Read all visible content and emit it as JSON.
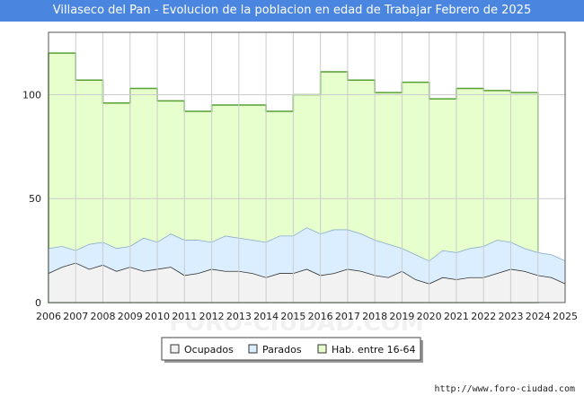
{
  "chart_data": {
    "type": "area",
    "title": "Villaseco del Pan - Evolucion de la poblacion en edad de Trabajar Febrero de 2025",
    "xlabel": "",
    "ylabel": "",
    "x_ticks": [
      "2006",
      "2007",
      "2008",
      "2009",
      "2010",
      "2011",
      "2012",
      "2013",
      "2014",
      "2015",
      "2016",
      "2017",
      "2018",
      "2019",
      "2020",
      "2021",
      "2022",
      "2023",
      "2024",
      "2025"
    ],
    "y_ticks": [
      0,
      50,
      100
    ],
    "xlim": [
      2006,
      2025
    ],
    "ylim": [
      0,
      130
    ],
    "grid": true,
    "legend_position": "bottom-center",
    "colors": {
      "ocupados": "#f2f2f2",
      "parados": "#dbeeff",
      "hab": "#e6ffcc",
      "hab_line": "#55a030",
      "grid": "#cccccc"
    },
    "series": [
      {
        "name": "Hab. entre 16-64",
        "x": [
          2006,
          2007,
          2008,
          2009,
          2010,
          2011,
          2012,
          2013,
          2014,
          2015,
          2016,
          2017,
          2018,
          2019,
          2020,
          2021,
          2022,
          2023
        ],
        "values": [
          120,
          107,
          96,
          103,
          97,
          92,
          95,
          95,
          92,
          100,
          111,
          107,
          101,
          106,
          98,
          103,
          102,
          101
        ]
      },
      {
        "name": "Parados",
        "x": [
          2006,
          2006.5,
          2007,
          2007.5,
          2008,
          2008.5,
          2009,
          2009.5,
          2010,
          2010.5,
          2011,
          2011.5,
          2012,
          2012.5,
          2013,
          2013.5,
          2014,
          2014.5,
          2015,
          2015.5,
          2016,
          2016.5,
          2017,
          2017.5,
          2018,
          2018.5,
          2019,
          2019.5,
          2020,
          2020.5,
          2021,
          2021.5,
          2022,
          2022.5,
          2023,
          2023.5,
          2024,
          2024.5,
          2025
        ],
        "values": [
          26,
          27,
          25,
          28,
          29,
          26,
          27,
          31,
          29,
          33,
          30,
          30,
          29,
          32,
          31,
          30,
          29,
          32,
          32,
          36,
          33,
          35,
          35,
          33,
          30,
          28,
          26,
          23,
          20,
          25,
          24,
          26,
          27,
          30,
          29,
          26,
          24,
          23,
          20
        ]
      },
      {
        "name": "Ocupados",
        "x": [
          2006,
          2006.5,
          2007,
          2007.5,
          2008,
          2008.5,
          2009,
          2009.5,
          2010,
          2010.5,
          2011,
          2011.5,
          2012,
          2012.5,
          2013,
          2013.5,
          2014,
          2014.5,
          2015,
          2015.5,
          2016,
          2016.5,
          2017,
          2017.5,
          2018,
          2018.5,
          2019,
          2019.5,
          2020,
          2020.5,
          2021,
          2021.5,
          2022,
          2022.5,
          2023,
          2023.5,
          2024,
          2024.5,
          2025
        ],
        "values": [
          14,
          17,
          19,
          16,
          18,
          15,
          17,
          15,
          16,
          17,
          13,
          14,
          16,
          15,
          15,
          14,
          12,
          14,
          14,
          16,
          13,
          14,
          16,
          15,
          13,
          12,
          15,
          11,
          9,
          12,
          11,
          12,
          12,
          14,
          16,
          15,
          13,
          12,
          9
        ]
      }
    ],
    "legend": [
      "Ocupados",
      "Parados",
      "Hab. entre 16-64"
    ]
  },
  "watermark": "FORO-CIUDAD.COM",
  "footer": "http://www.foro-ciudad.com"
}
